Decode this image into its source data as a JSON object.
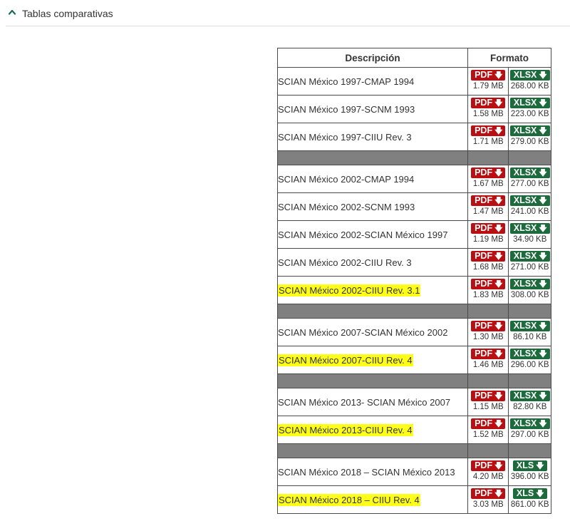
{
  "section": {
    "title": "Tablas comparativas",
    "icon": "chevron-up-icon"
  },
  "table": {
    "headers": {
      "description": "Descripción",
      "format": "Formato"
    },
    "groups": [
      {
        "rows": [
          {
            "description": "SCIAN México 1997-CMAP 1994",
            "highlighted": false,
            "pdf_label": "PDF",
            "pdf_size": "1.79 MB",
            "sheet_label": "XLSX",
            "sheet_size": "268.00 KB"
          },
          {
            "description": "SCIAN México 1997-SCNM 1993",
            "highlighted": false,
            "pdf_label": "PDF",
            "pdf_size": "1.58 MB",
            "sheet_label": "XLSX",
            "sheet_size": "223.00 KB"
          },
          {
            "description": "SCIAN México 1997-CIIU Rev. 3",
            "highlighted": false,
            "pdf_label": "PDF",
            "pdf_size": "1.71 MB",
            "sheet_label": "XLSX",
            "sheet_size": "279.00 KB"
          }
        ]
      },
      {
        "rows": [
          {
            "description": "SCIAN México 2002-CMAP 1994",
            "highlighted": false,
            "pdf_label": "PDF",
            "pdf_size": "1.67 MB",
            "sheet_label": "XLSX",
            "sheet_size": "277.00 KB"
          },
          {
            "description": "SCIAN México 2002-SCNM 1993",
            "highlighted": false,
            "pdf_label": "PDF",
            "pdf_size": "1.47 MB",
            "sheet_label": "XLSX",
            "sheet_size": "241.00 KB"
          },
          {
            "description": "SCIAN México 2002-SCIAN México 1997",
            "highlighted": false,
            "pdf_label": "PDF",
            "pdf_size": "1.19 MB",
            "sheet_label": "XLSX",
            "sheet_size": "34.90 KB"
          },
          {
            "description": "SCIAN México 2002-CIIU Rev. 3",
            "highlighted": false,
            "pdf_label": "PDF",
            "pdf_size": "1.68 MB",
            "sheet_label": "XLSX",
            "sheet_size": "271.00 KB"
          },
          {
            "description": "SCIAN México 2002-CIIU Rev. 3.1",
            "highlighted": true,
            "pdf_label": "PDF",
            "pdf_size": "1.83 MB",
            "sheet_label": "XLSX",
            "sheet_size": "308.00 KB"
          }
        ]
      },
      {
        "rows": [
          {
            "description": "SCIAN México 2007-SCIAN México 2002",
            "highlighted": false,
            "pdf_label": "PDF",
            "pdf_size": "1.30 MB",
            "sheet_label": "XLSX",
            "sheet_size": "86.10 KB"
          },
          {
            "description": "SCIAN México 2007-CIIU Rev. 4",
            "highlighted": true,
            "pdf_label": "PDF",
            "pdf_size": "1.46 MB",
            "sheet_label": "XLSX",
            "sheet_size": "296.00 KB"
          }
        ]
      },
      {
        "rows": [
          {
            "description": "SCIAN México 2013- SCIAN México 2007",
            "highlighted": false,
            "pdf_label": "PDF",
            "pdf_size": "1.15 MB",
            "sheet_label": "XLSX",
            "sheet_size": "82.80 KB"
          },
          {
            "description": "SCIAN México 2013-CIIU Rev. 4",
            "highlighted": true,
            "pdf_label": "PDF",
            "pdf_size": "1.52 MB",
            "sheet_label": "XLSX",
            "sheet_size": "297.00 KB"
          }
        ]
      },
      {
        "rows": [
          {
            "description": "SCIAN México 2018 – SCIAN México 2013",
            "highlighted": false,
            "pdf_label": "PDF",
            "pdf_size": "4.20 MB",
            "sheet_label": "XLS",
            "sheet_size": "396.00 KB"
          },
          {
            "description": "SCIAN México 2018 – CIIU Rev. 4",
            "highlighted": true,
            "pdf_label": "PDF",
            "pdf_size": "3.03 MB",
            "sheet_label": "XLS",
            "sheet_size": "861.00 KB"
          }
        ]
      }
    ]
  },
  "colors": {
    "pdf": "#b90f12",
    "sheet": "#1d6b3c",
    "highlight": "#ffff1a",
    "separator": "#808080",
    "caret": "#1a6b5a"
  }
}
